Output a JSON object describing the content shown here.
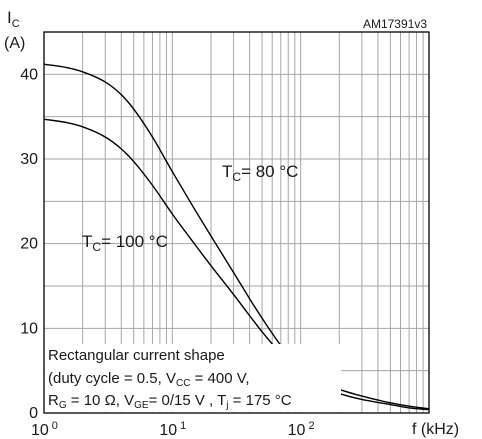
{
  "colors": {
    "grid": "#a6a6a6",
    "frame": "#000000",
    "curve": "#000000",
    "text": "#1a1a1a"
  },
  "chart_data": {
    "type": "line",
    "x_scale": "log",
    "xlim": [
      1,
      1000
    ],
    "ylim": [
      0,
      45
    ],
    "y_grid_step": 5,
    "grid": true,
    "code": "AM17391v3",
    "ylabel": {
      "main": "I",
      "sub": "C",
      "unit": "(A)"
    },
    "xlabel": "f (kHz)",
    "x_ticks": [
      {
        "value": 1,
        "base": "10",
        "exp": "0"
      },
      {
        "value": 10,
        "base": "10",
        "exp": "1"
      },
      {
        "value": 100,
        "base": "10",
        "exp": "2"
      }
    ],
    "y_ticks": [
      0,
      10,
      20,
      30,
      40
    ],
    "series": [
      {
        "label": {
          "main": "T",
          "sub": "C",
          "rest": "= 80 °C"
        },
        "x": [
          1,
          1.5,
          2,
          3,
          4,
          5,
          7,
          10,
          15,
          20,
          30,
          40,
          50,
          70,
          100,
          150,
          200,
          300,
          500,
          700,
          1000
        ],
        "y": [
          41.2,
          40.8,
          40.3,
          39.1,
          37.6,
          35.9,
          32.6,
          28.5,
          24.0,
          20.9,
          16.6,
          13.5,
          11.2,
          8.0,
          5.3,
          3.6,
          2.8,
          2.0,
          1.2,
          0.8,
          0.5
        ]
      },
      {
        "label": {
          "main": "T",
          "sub": "C",
          "rest": "= 100 °C"
        },
        "x": [
          1,
          1.5,
          2,
          3,
          4,
          5,
          7,
          10,
          15,
          20,
          30,
          40,
          50,
          70,
          100,
          150,
          200,
          300,
          500,
          700,
          1000
        ],
        "y": [
          34.7,
          34.3,
          33.8,
          32.6,
          31.2,
          29.7,
          26.9,
          23.5,
          19.9,
          17.4,
          14.0,
          11.5,
          9.6,
          7.0,
          4.7,
          3.0,
          2.3,
          1.6,
          1.0,
          0.6,
          0.4
        ]
      }
    ],
    "annotation_lines": [
      [
        {
          "t": "Rectangular current shape"
        }
      ],
      [
        {
          "t": "(duty cycle = 0.5, V"
        },
        {
          "t": "CC",
          "sub": true
        },
        {
          "t": " = 400 V,"
        }
      ],
      [
        {
          "t": "R"
        },
        {
          "t": "G",
          "sub": true
        },
        {
          "t": " = 10 Ω, V"
        },
        {
          "t": "GE",
          "sub": true
        },
        {
          "t": "= 0/15 V , T"
        },
        {
          "t": "j",
          "sub": true
        },
        {
          "t": " = 175 °C"
        }
      ]
    ]
  }
}
